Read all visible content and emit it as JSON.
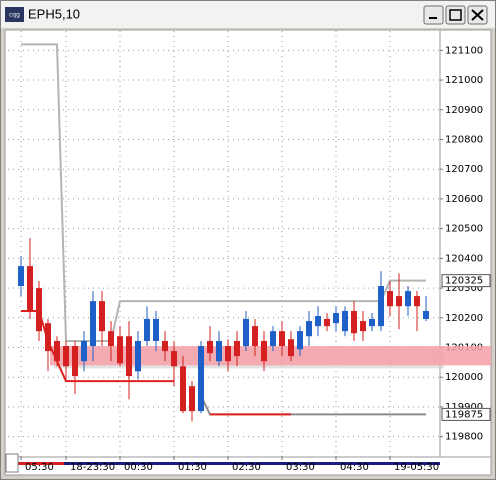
{
  "chart_data": {
    "type": "candlestick",
    "title": "EPH5,10",
    "categories": [
      "05:30",
      null,
      null,
      null,
      null,
      "18-23:30",
      null,
      null,
      null,
      null,
      null,
      "00:30",
      null,
      null,
      null,
      null,
      null,
      "01:30",
      null,
      null,
      null,
      null,
      null,
      "02:30",
      null,
      null,
      null,
      null,
      null,
      "03:30",
      null,
      null,
      null,
      null,
      null,
      "04:30",
      null,
      null,
      null,
      null,
      null,
      "19-05:30",
      null,
      null,
      null,
      null
    ],
    "open": [
      120307,
      120374,
      120300,
      120182,
      120122,
      120105,
      120105,
      120054,
      120105,
      120256,
      120155,
      120138,
      120138,
      120020,
      120122,
      120122,
      120122,
      120088,
      120037,
      119970,
      119886,
      120122,
      120054,
      120105,
      120122,
      120105,
      120172,
      120122,
      120105,
      120155,
      120128,
      120094,
      120138,
      120172,
      120196,
      120182,
      120155,
      120223,
      120189,
      120172,
      120172,
      120290,
      120273,
      120239,
      120273,
      120196
    ],
    "high": [
      120408,
      120468,
      120324,
      120196,
      120138,
      120122,
      120122,
      120155,
      120290,
      120290,
      120189,
      120172,
      120189,
      120155,
      120239,
      120223,
      120155,
      120122,
      120071,
      119987,
      120122,
      120172,
      120155,
      120128,
      120155,
      120223,
      120196,
      120155,
      120172,
      120189,
      120155,
      120172,
      120223,
      120239,
      120216,
      120239,
      120239,
      120256,
      120223,
      120216,
      120357,
      120324,
      120350,
      120307,
      120290,
      120273
    ],
    "low": [
      120273,
      120196,
      120122,
      120020,
      120037,
      119987,
      119943,
      120020,
      120054,
      120105,
      120054,
      120037,
      119926,
      119993,
      120105,
      120088,
      120054,
      119970,
      119879,
      119852,
      119879,
      120054,
      120037,
      120020,
      120037,
      120088,
      120071,
      120020,
      120088,
      120071,
      120054,
      120071,
      120105,
      120138,
      120155,
      120155,
      120138,
      120122,
      120122,
      120155,
      120155,
      120206,
      120162,
      120206,
      120155,
      120189
    ],
    "close": [
      120374,
      120223,
      120155,
      120088,
      120054,
      120037,
      120004,
      120122,
      120256,
      120155,
      120105,
      120047,
      120004,
      120122,
      120196,
      120196,
      120088,
      120037,
      119886,
      119886,
      120105,
      120081,
      120122,
      120054,
      120071,
      120196,
      120105,
      120054,
      120155,
      120105,
      120071,
      120155,
      120189,
      120206,
      120172,
      120216,
      120223,
      120148,
      120155,
      120196,
      120307,
      120239,
      120239,
      120290,
      120239,
      120223
    ],
    "up_color": "#1f5fc8",
    "down_color": "#d42020",
    "series": [
      {
        "color": "#b4b4b4",
        "values": [
          121120,
          121120,
          121120,
          121120,
          121120,
          120122,
          120122,
          120122,
          120122,
          120122,
          120122,
          120256,
          120256,
          120256,
          120256,
          120256,
          120256,
          120256,
          120256,
          120256,
          120256,
          120256,
          120256,
          120256,
          120256,
          120256,
          120256,
          120256,
          120256,
          120256,
          120256,
          120256,
          120256,
          120256,
          120256,
          120256,
          120256,
          120256,
          120256,
          120256,
          120256,
          120325,
          120325,
          120325,
          120325,
          120325
        ]
      },
      {
        "color": "#8c8c8c",
        "values": [
          null,
          null,
          null,
          null,
          null,
          null,
          null,
          null,
          null,
          null,
          null,
          null,
          null,
          null,
          null,
          null,
          null,
          null,
          null,
          null,
          119937,
          119875,
          119875,
          119875,
          119875,
          119875,
          119875,
          119875,
          119875,
          119875,
          119875,
          119875,
          119875,
          119875,
          119875,
          119875,
          119875,
          119875,
          119875,
          119875,
          119875,
          119875,
          119875,
          119875,
          119875,
          119875
        ]
      },
      {
        "color": "#e02020",
        "values": [
          120223,
          120223,
          120223,
          120122,
          120054,
          119987,
          119987,
          119987,
          119987,
          119987,
          119987,
          119987,
          119987,
          119987,
          119987,
          119987,
          119987,
          119987,
          null,
          null,
          null,
          119875,
          119875,
          119875,
          119875,
          119875,
          119875,
          119875,
          119875,
          119875,
          119875,
          null,
          null,
          null,
          null,
          null,
          null,
          null,
          null,
          null,
          null,
          null,
          null,
          null,
          null,
          null
        ]
      }
    ],
    "zone": {
      "low": 120040,
      "high": 120105,
      "color": "#f7a0a8"
    },
    "markers": [
      120325,
      119875
    ],
    "ylim": [
      119735,
      121165
    ],
    "yticks": [
      119800,
      119900,
      120000,
      120100,
      120200,
      120300,
      120400,
      120500,
      120600,
      120700,
      120800,
      120900,
      121000,
      121100
    ],
    "grid": true
  }
}
